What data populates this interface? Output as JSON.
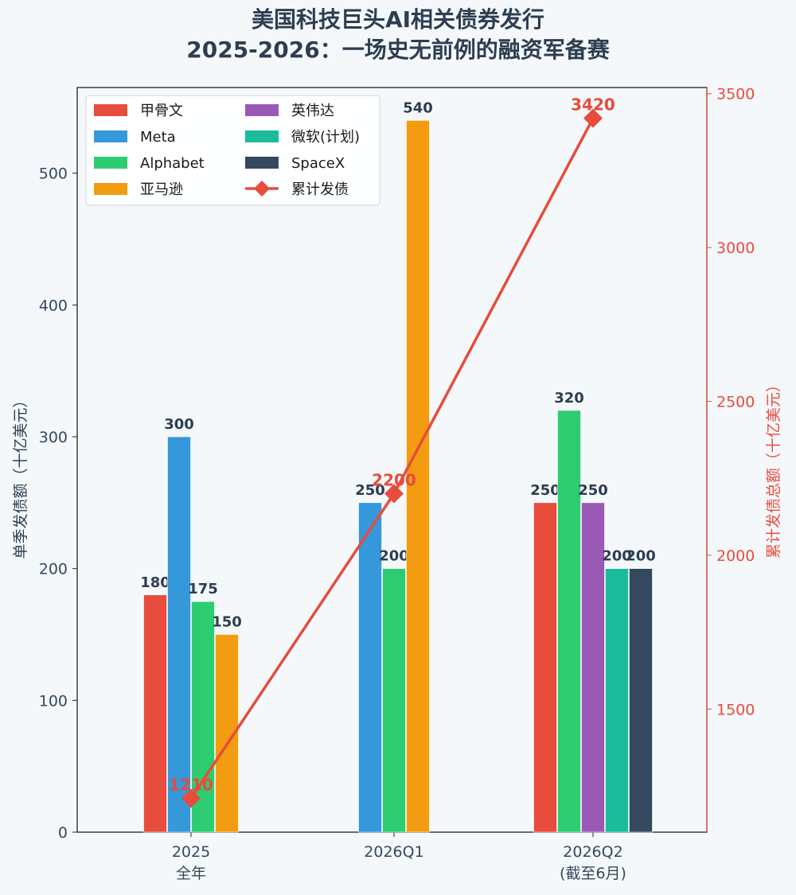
{
  "chart_data": {
    "type": "bar",
    "title_line1": "美国科技巨头AI相关债券发行",
    "title_line2": "2025-2026：一场史无前例的融资军备赛",
    "ylabel": "单季发债额（十亿美元）",
    "ylabel_right": "累计发债总额（十亿美元）",
    "categories": [
      {
        "line1": "2025",
        "line2": "全年"
      },
      {
        "line1": "2026Q1",
        "line2": ""
      },
      {
        "line1": "2026Q2",
        "line2": "(截至6月)"
      }
    ],
    "ylim": [
      0,
      565
    ],
    "yticks": [
      0,
      100,
      200,
      300,
      400,
      500
    ],
    "ylim_right": [
      1100,
      3520
    ],
    "yticks_right": [
      1500,
      2000,
      2500,
      3000,
      3500
    ],
    "series": [
      {
        "name": "甲骨文",
        "color": "#e74c3c",
        "values": [
          180,
          null,
          250
        ]
      },
      {
        "name": "Meta",
        "color": "#3498db",
        "values": [
          300,
          250,
          null
        ]
      },
      {
        "name": "Alphabet",
        "color": "#2ecc71",
        "values": [
          175,
          200,
          320
        ]
      },
      {
        "name": "亚马逊",
        "color": "#f39c12",
        "values": [
          150,
          540,
          null
        ]
      },
      {
        "name": "英伟达",
        "color": "#9b59b6",
        "values": [
          null,
          null,
          250
        ]
      },
      {
        "name": "微软(计划)",
        "color": "#1abc9c",
        "values": [
          null,
          null,
          200
        ]
      },
      {
        "name": "SpaceX",
        "color": "#34495e",
        "values": [
          null,
          null,
          200
        ]
      }
    ],
    "line_series": {
      "name": "累计发债",
      "color": "#e74c3c",
      "values": [
        1210,
        2200,
        3420
      ]
    },
    "legend_position": "top-left",
    "grid": false
  }
}
